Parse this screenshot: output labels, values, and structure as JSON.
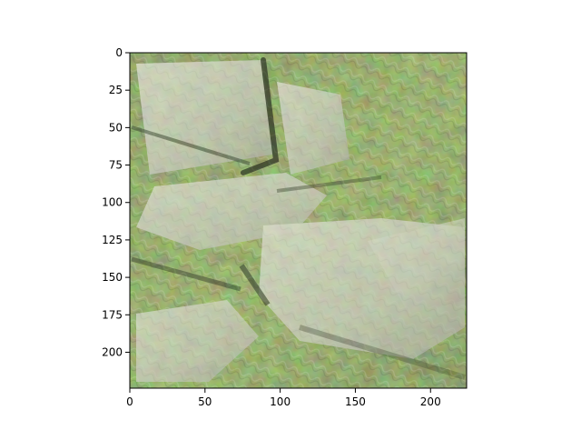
{
  "figure": {
    "kind": "image-plot",
    "image_description_keys": [
      "texture-field",
      "green-vegetation",
      "light-gray-patches",
      "dark-seams"
    ],
    "palette": {
      "green_dark": "#3f5a1e",
      "green_mid": "#6f8f2c",
      "green_light": "#a9bf5a",
      "gray_light": "#d7d8cd",
      "gray_mid": "#b7b8aa",
      "gray_dark": "#7f8176",
      "seam": "#1f2617"
    }
  },
  "axes": {
    "x_ticks": [
      0,
      50,
      100,
      150,
      200
    ],
    "y_ticks": [
      0,
      25,
      50,
      75,
      100,
      125,
      150,
      175,
      200
    ],
    "x_range": [
      0,
      224
    ],
    "y_range": [
      0,
      224
    ]
  }
}
